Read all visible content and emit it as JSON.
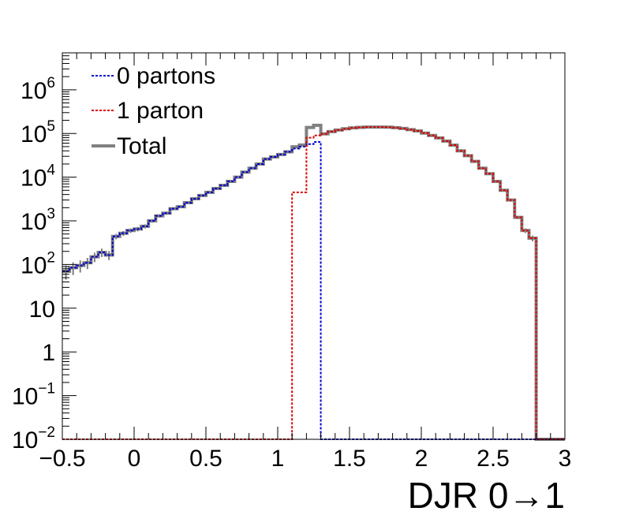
{
  "chart_data": {
    "type": "line",
    "xlabel": "DJR 0→1",
    "ylabel": "",
    "xlim": [
      -0.5,
      3.0
    ],
    "ylim": [
      0.01,
      7000000
    ],
    "yscale": "log",
    "grid": false,
    "legend_position": "top-left",
    "x_ticks": [
      "−0.5",
      "0",
      "0.5",
      "1",
      "1.5",
      "2",
      "2.5",
      "3"
    ],
    "y_ticks": [
      {
        "base": "10",
        "exp": "−2"
      },
      {
        "base": "10",
        "exp": "−1"
      },
      {
        "base": "1",
        "exp": ""
      },
      {
        "base": "10",
        "exp": ""
      },
      {
        "base": "10",
        "exp": "2"
      },
      {
        "base": "10",
        "exp": "3"
      },
      {
        "base": "10",
        "exp": "4"
      },
      {
        "base": "10",
        "exp": "5"
      },
      {
        "base": "10",
        "exp": "6"
      }
    ],
    "x_edges_start": -0.5,
    "bin_width": 0.05,
    "series": [
      {
        "name": "0 partons",
        "color": "#0000cc",
        "style": "dotted",
        "bin_values": [
          70,
          85,
          95,
          110,
          150,
          190,
          165,
          440,
          520,
          600,
          650,
          750,
          1000,
          1300,
          1500,
          1900,
          2100,
          2600,
          3200,
          3800,
          4500,
          5500,
          6500,
          8000,
          10000,
          13000,
          16000,
          20000,
          26000,
          29000,
          33000,
          38000,
          45000,
          50000,
          57000,
          64000
        ]
      },
      {
        "name": "1 parton",
        "color": "#dd0000",
        "style": "dotted",
        "first_bin": 32,
        "bin_values": [
          4500,
          4500,
          80000,
          90000,
          98000,
          110000,
          120000,
          128000,
          134000,
          138000,
          140000,
          140000,
          140000,
          139000,
          136000,
          130000,
          122000,
          114000,
          102000,
          90000,
          79000,
          67000,
          54000,
          40000,
          31000,
          23000,
          16000,
          12000,
          8000,
          5000,
          3000,
          1200,
          600,
          400
        ]
      },
      {
        "name": "Total",
        "color": "#808080",
        "style": "solid"
      }
    ]
  }
}
